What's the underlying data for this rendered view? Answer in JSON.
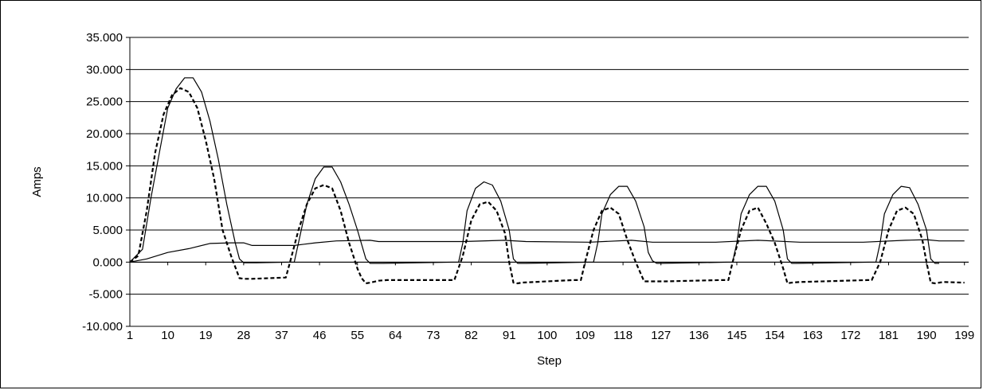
{
  "chart_data": {
    "type": "line",
    "title": "",
    "xlabel": "Step",
    "ylabel": "Amps",
    "ylim": [
      -10,
      35
    ],
    "y_ticks": [
      -10,
      -5,
      0,
      5,
      10,
      15,
      20,
      25,
      30,
      35
    ],
    "y_tick_labels": [
      "-10.000",
      "-5.000",
      "0.000",
      "5.000",
      "10.000",
      "15.000",
      "20.000",
      "25.000",
      "30.000",
      "35.000"
    ],
    "x_range": [
      1,
      200
    ],
    "x_tick_labels": [
      "1",
      "10",
      "19",
      "28",
      "37",
      "46",
      "55",
      "64",
      "73",
      "82",
      "91",
      "100",
      "109",
      "118",
      "127",
      "136",
      "145",
      "154",
      "163",
      "172",
      "181",
      "190",
      "199"
    ],
    "grid": "horizontal",
    "legend": "none",
    "colors": {
      "line": "#000000",
      "grid": "#000000",
      "background": "#ffffff"
    },
    "series": [
      {
        "style": "solid",
        "x": [
          1,
          4,
          6,
          8,
          10,
          12,
          14,
          16,
          18,
          20,
          22,
          24,
          26,
          27,
          28,
          29,
          30,
          31,
          40,
          41,
          43,
          45,
          47,
          49,
          51,
          53,
          55,
          57,
          58,
          59,
          60,
          61,
          79,
          80,
          81,
          83,
          85,
          87,
          89,
          91,
          92,
          93,
          94,
          95,
          111,
          112,
          113,
          115,
          117,
          119,
          121,
          123,
          124,
          125,
          126,
          127,
          144,
          145,
          146,
          148,
          150,
          152,
          154,
          156,
          157,
          158,
          159,
          178,
          179,
          180,
          182,
          184,
          186,
          188,
          190,
          191,
          192,
          193
        ],
        "y": [
          0,
          2,
          10,
          17,
          24,
          27,
          28.7,
          28.7,
          26.5,
          22,
          16,
          9,
          3,
          0.5,
          -0.1,
          -0.1,
          -0.1,
          -0.1,
          0,
          3,
          9,
          13,
          14.8,
          14.8,
          12.5,
          9,
          5,
          0.5,
          -0.2,
          -0.2,
          -0.2,
          -0.2,
          0,
          3,
          8,
          11.5,
          12.5,
          12,
          9.5,
          5,
          0.5,
          -0.2,
          -0.2,
          -0.2,
          0,
          3,
          7.5,
          10.5,
          11.8,
          11.8,
          9.5,
          5.5,
          1.5,
          0.2,
          -0.2,
          -0.2,
          0,
          3,
          7.5,
          10.5,
          11.8,
          11.8,
          9.5,
          5,
          0.5,
          -0.2,
          -0.2,
          0,
          3,
          7.5,
          10.5,
          11.8,
          11.6,
          9,
          5,
          0.5,
          -0.2,
          -0.2
        ]
      },
      {
        "style": "dashed",
        "x": [
          1,
          3,
          5,
          7,
          9,
          11,
          13,
          15,
          17,
          19,
          21,
          23,
          25,
          27,
          28,
          30,
          38,
          39,
          41,
          43,
          45,
          47,
          49,
          51,
          53,
          55,
          56,
          57,
          58,
          60,
          62,
          78,
          80,
          82,
          84,
          86,
          88,
          90,
          91,
          92,
          93,
          94,
          106,
          108,
          109,
          111,
          113,
          115,
          117,
          119,
          121,
          123,
          124,
          125,
          126,
          128,
          141,
          143,
          144,
          146,
          148,
          150,
          152,
          154,
          156,
          157,
          158,
          160,
          176,
          177,
          179,
          181,
          183,
          185,
          187,
          189,
          190,
          191,
          192,
          194,
          199
        ],
        "y": [
          0,
          1,
          8,
          17,
          23,
          26,
          27.1,
          26.5,
          24,
          19,
          13,
          5,
          1,
          -2.5,
          -2.6,
          -2.6,
          -2.4,
          0,
          5,
          9,
          11.5,
          12,
          11.5,
          8,
          3,
          -1,
          -2.5,
          -3.3,
          -3.2,
          -2.9,
          -2.8,
          -2.8,
          1,
          6.5,
          9,
          9.4,
          8,
          4.5,
          0,
          -3.2,
          -3.3,
          -3.2,
          -2.8,
          -2.8,
          0,
          5,
          8,
          8.5,
          7.5,
          3.5,
          0,
          -3,
          -3,
          -3,
          -3,
          -3,
          -2.8,
          -2.8,
          0,
          5,
          8,
          8.5,
          6,
          3,
          -1,
          -3.3,
          -3.2,
          -3.1,
          -2.8,
          -2.8,
          0,
          5,
          8,
          8.5,
          7.5,
          3.5,
          0,
          -3.2,
          -3.3,
          -3.1,
          -3.2
        ]
      },
      {
        "style": "solid",
        "x": [
          1,
          5,
          10,
          15,
          20,
          25,
          28,
          30,
          40,
          45,
          50,
          58,
          60,
          80,
          90,
          95,
          110,
          120,
          125,
          140,
          150,
          160,
          175,
          185,
          190,
          193,
          199
        ],
        "y": [
          0,
          0.5,
          1.5,
          2.1,
          2.9,
          3.0,
          3.0,
          2.6,
          2.6,
          3.0,
          3.3,
          3.4,
          3.2,
          3.2,
          3.4,
          3.2,
          3.1,
          3.4,
          3.1,
          3.1,
          3.4,
          3.1,
          3.1,
          3.4,
          3.5,
          3.3,
          3.3
        ]
      }
    ]
  }
}
